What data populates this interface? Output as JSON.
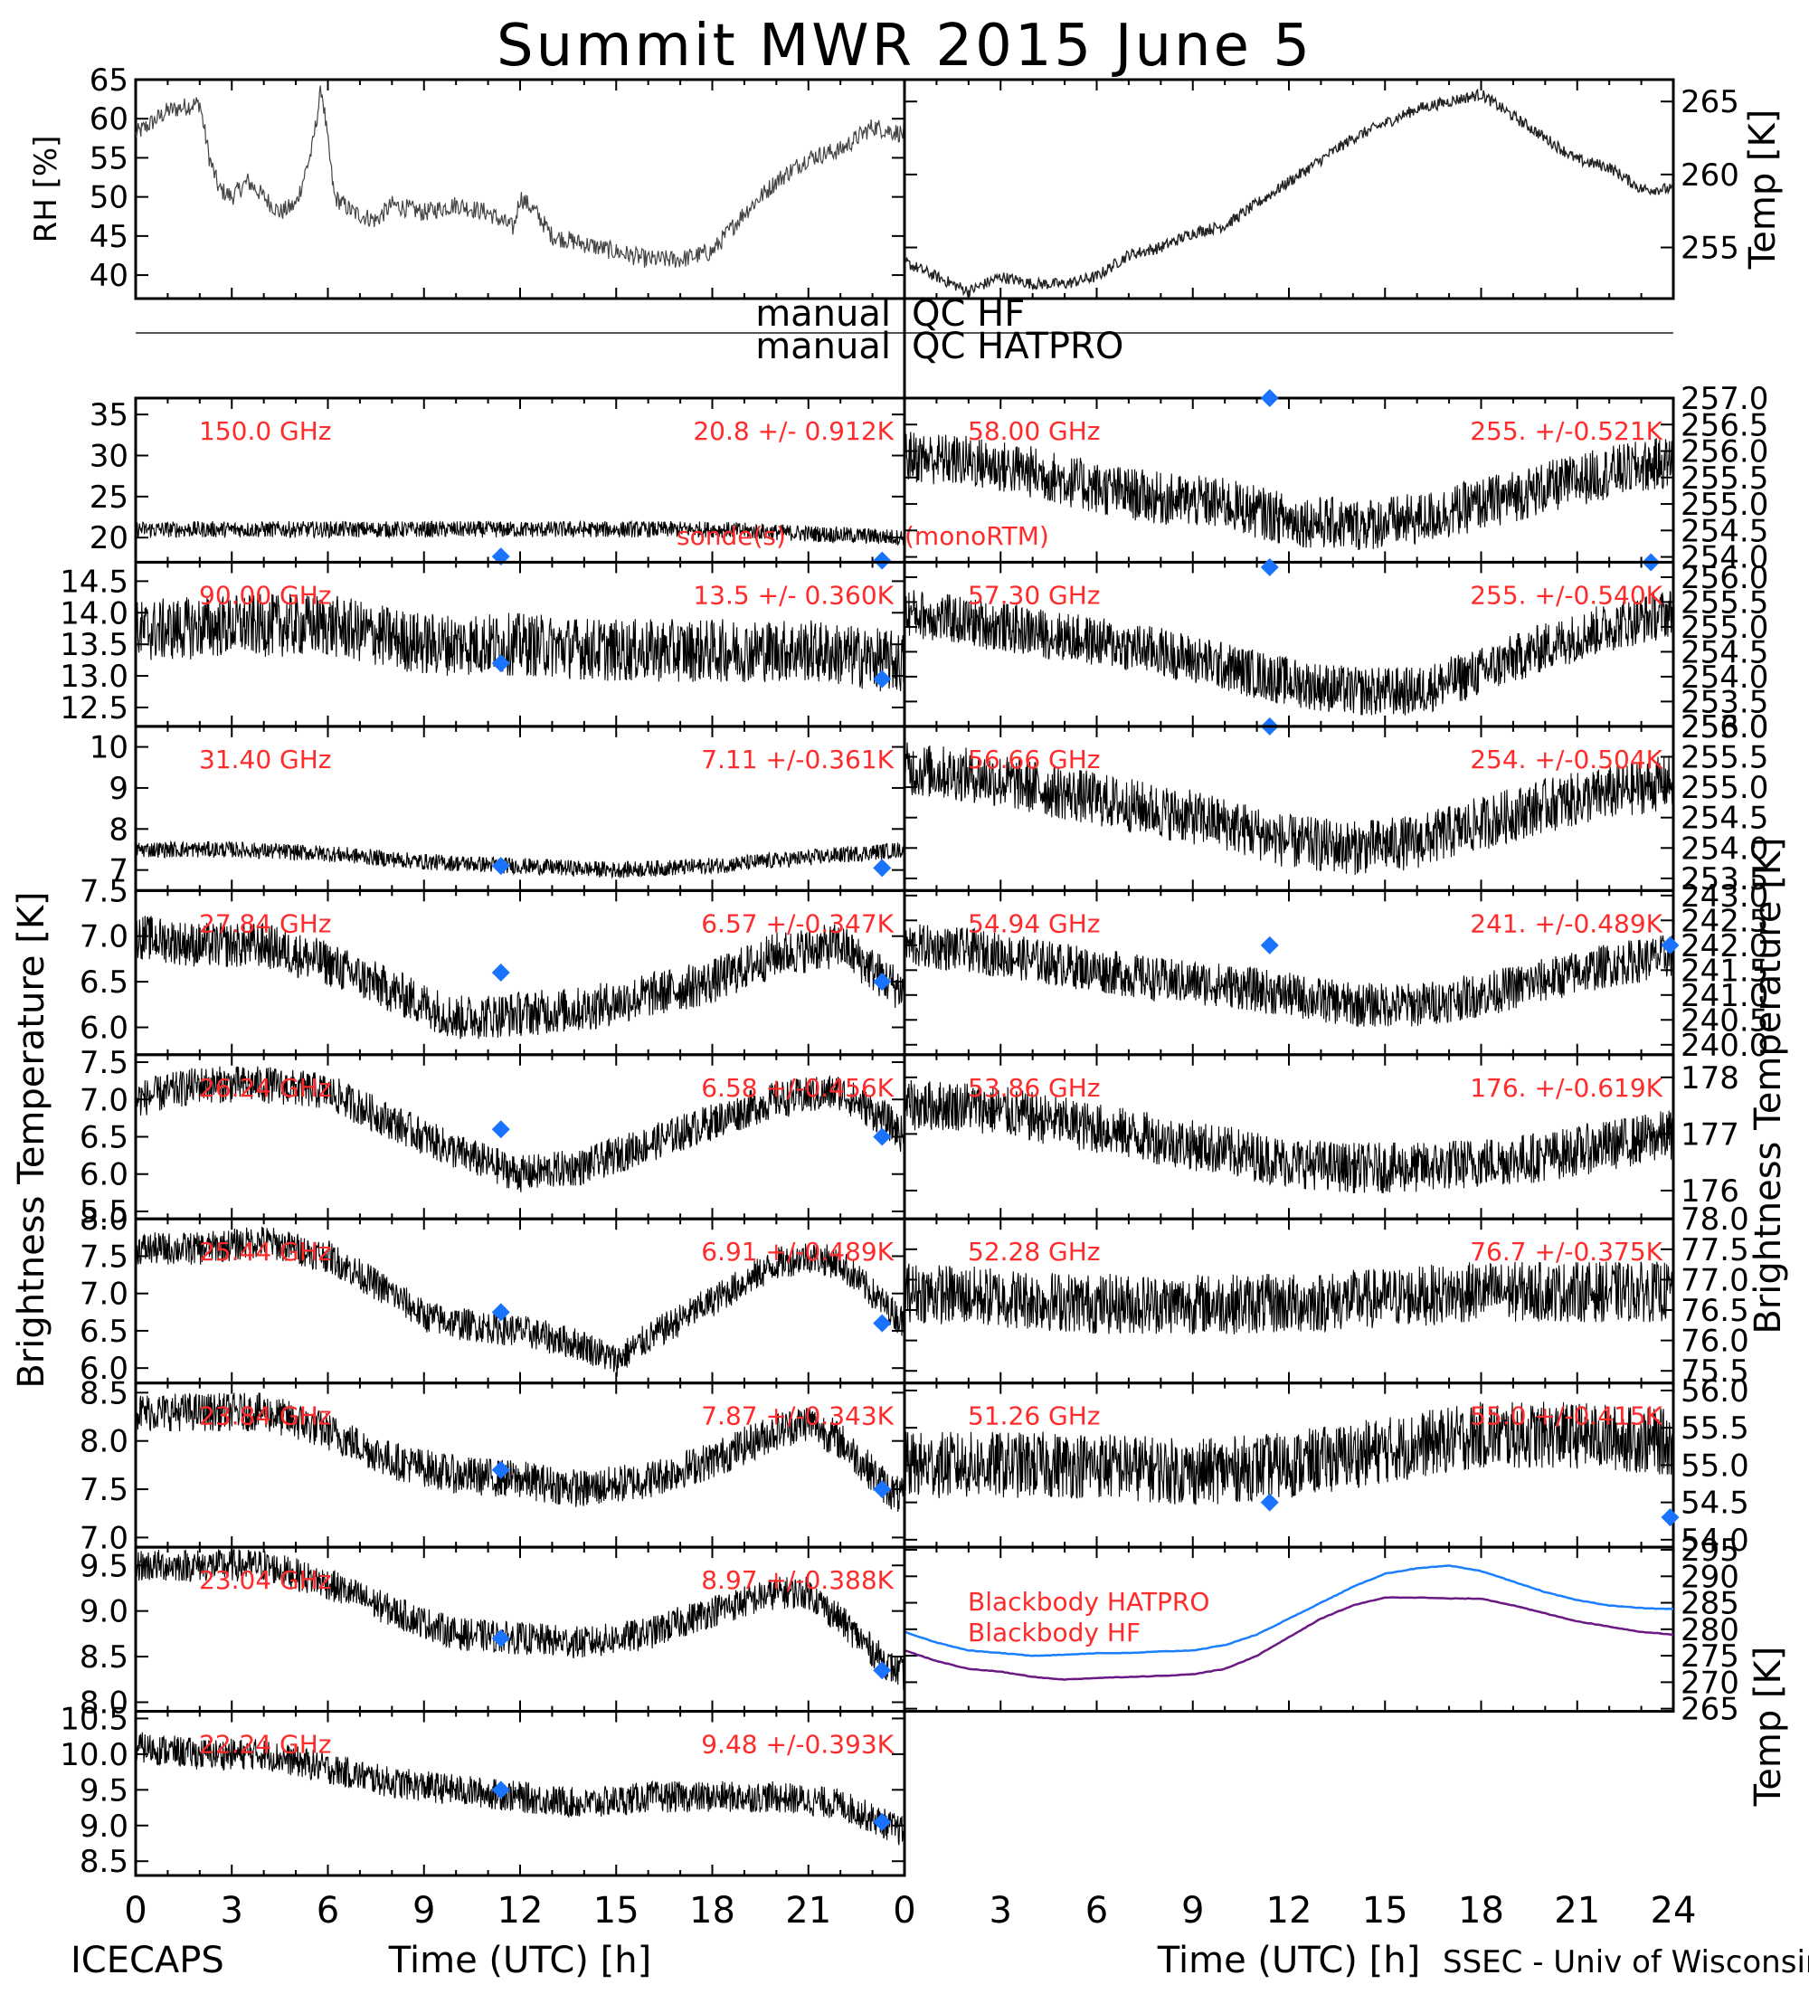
{
  "chart_data": {
    "type": "line",
    "title": "Summit MWR 2015 June  5",
    "footer_left": "ICECAPS",
    "footer_right": "SSEC - Univ of Wisconsin",
    "xlabel": "Time (UTC) [h]",
    "xlim": [
      0,
      24
    ],
    "xticks": [
      "0",
      "3",
      "6",
      "9",
      "12",
      "15",
      "18",
      "21",
      "0",
      "3",
      "6",
      "9",
      "12",
      "15",
      "18",
      "21",
      "24"
    ],
    "left_axis_label": "Brightness Temperature [K]",
    "right_axis_label": "Brightness Temperature [K]",
    "qc_lines": [
      "manual",
      "QC HF",
      "manual",
      "QC HATPRO"
    ],
    "met": {
      "rh": {
        "ylabel": "RH [%]",
        "ylim": [
          37,
          65
        ],
        "yticks": [
          "40",
          "45",
          "50",
          "55",
          "60",
          "65"
        ],
        "x": [
          0,
          1,
          2,
          2.3,
          2.6,
          3,
          3.5,
          4,
          4.5,
          5,
          5.5,
          5.8,
          6.2,
          6.8,
          7.5,
          8,
          9,
          10,
          11,
          11.8,
          12,
          12.5,
          13,
          14,
          15,
          16,
          17,
          18,
          19,
          20,
          21,
          22,
          23,
          24
        ],
        "values": [
          58,
          61,
          62,
          55,
          51,
          50,
          52,
          50,
          48,
          49,
          56,
          64,
          50,
          48,
          47,
          49,
          48,
          49,
          48,
          46,
          50,
          48,
          45,
          44,
          43,
          42,
          42,
          43,
          48,
          52,
          55,
          56,
          59,
          58
        ]
      },
      "temp": {
        "ylabel": "Temp [K]",
        "ylim": [
          251.5,
          266.5
        ],
        "yticks": [
          "255",
          "260",
          "265"
        ],
        "x": [
          0,
          1,
          2,
          3,
          4,
          5,
          6,
          7,
          8,
          9,
          10,
          11,
          12,
          13,
          14,
          15,
          16,
          17,
          18,
          19,
          20,
          21,
          22,
          23,
          24
        ],
        "values": [
          254,
          253,
          252,
          253,
          252.5,
          252.5,
          253,
          254.5,
          255,
          256,
          256.5,
          258,
          259.5,
          261,
          262.5,
          263.5,
          264.5,
          265,
          265.5,
          264,
          262.5,
          261,
          260.5,
          259,
          259
        ]
      }
    },
    "panels": [
      {
        "col": "left",
        "freq": "150.0 GHz",
        "stat": "20.8 +/- 0.912K",
        "ylim": [
          17,
          37
        ],
        "yticks": [
          "20",
          "25",
          "30",
          "35"
        ],
        "x": [
          0,
          3,
          6,
          9,
          12,
          15,
          18,
          21,
          24
        ],
        "values": [
          21,
          21,
          21,
          21,
          21,
          21,
          21,
          20.5,
          20
        ],
        "noise": 1.0,
        "markers": [
          [
            11.4,
            17.7
          ],
          [
            23.3,
            17.2
          ]
        ],
        "extra_labels": [
          {
            "text": "sonde(s)",
            "color": "#3070ff",
            "x": 20.3,
            "y_frac": 0.85
          },
          {
            "text": "(monoRTM)",
            "color": "#3070ff",
            "x": 24.0,
            "y_frac": 0.85
          }
        ]
      },
      {
        "col": "left",
        "freq": "90.00 GHz",
        "stat": "13.5 +/- 0.360K",
        "ylim": [
          12.2,
          14.8
        ],
        "yticks": [
          "12.5",
          "13.0",
          "13.5",
          "14.0",
          "14.5"
        ],
        "x": [
          0,
          3,
          6,
          9,
          12,
          15,
          18,
          21,
          24
        ],
        "values": [
          13.7,
          13.8,
          13.8,
          13.5,
          13.5,
          13.4,
          13.4,
          13.4,
          13.2
        ],
        "noise": 0.5,
        "markers": [
          [
            11.4,
            13.2
          ],
          [
            23.3,
            12.95
          ]
        ]
      },
      {
        "col": "left",
        "freq": "31.40 GHz",
        "stat": "7.11 +/-0.361K",
        "ylim": [
          6.5,
          10.5
        ],
        "yticks": [
          "7",
          "8",
          "9",
          "10"
        ],
        "x": [
          0,
          3,
          6,
          9,
          12,
          15,
          18,
          21,
          24
        ],
        "values": [
          7.5,
          7.5,
          7.4,
          7.2,
          7.1,
          7.0,
          7.1,
          7.3,
          7.5
        ],
        "noise": 0.2,
        "markers": [
          [
            11.4,
            7.1
          ],
          [
            23.3,
            7.05
          ]
        ]
      },
      {
        "col": "left",
        "freq": "27.84 GHz",
        "stat": "6.57 +/-0.347K",
        "ylim": [
          5.7,
          7.5
        ],
        "yticks": [
          "6.0",
          "6.5",
          "7.0",
          "7.5"
        ],
        "x": [
          0,
          2,
          4,
          6,
          8,
          10,
          12,
          14,
          16,
          18,
          20,
          22,
          23.5,
          24
        ],
        "values": [
          7.0,
          6.9,
          6.9,
          6.7,
          6.4,
          6.1,
          6.15,
          6.2,
          6.35,
          6.5,
          6.8,
          6.9,
          6.5,
          6.4
        ],
        "noise": 0.25,
        "markers": [
          [
            11.4,
            6.6
          ],
          [
            23.3,
            6.5
          ]
        ]
      },
      {
        "col": "left",
        "freq": "26.24 GHz",
        "stat": "6.58 +/-0.456K",
        "ylim": [
          5.4,
          7.6
        ],
        "yticks": [
          "5.5",
          "6.0",
          "6.5",
          "7.0",
          "7.5"
        ],
        "x": [
          0,
          2,
          4,
          6,
          8,
          10,
          12,
          14,
          16,
          18,
          20,
          22,
          23.5,
          24
        ],
        "values": [
          7.0,
          7.2,
          7.2,
          7.1,
          6.7,
          6.3,
          6.0,
          6.1,
          6.4,
          6.7,
          7.0,
          7.1,
          6.7,
          6.5
        ],
        "noise": 0.25,
        "markers": [
          [
            11.4,
            6.6
          ],
          [
            23.3,
            6.5
          ]
        ]
      },
      {
        "col": "left",
        "freq": "25.44 GHz",
        "stat": "6.91 +/-0.489K",
        "ylim": [
          5.8,
          8.0
        ],
        "yticks": [
          "6.0",
          "6.5",
          "7.0",
          "7.5",
          "8.0"
        ],
        "x": [
          0,
          2,
          4,
          6,
          8,
          9,
          10,
          12,
          14,
          15,
          16,
          18,
          20,
          21,
          22,
          23.5,
          24
        ],
        "values": [
          7.6,
          7.6,
          7.7,
          7.5,
          7.0,
          6.7,
          6.6,
          6.5,
          6.3,
          6.1,
          6.4,
          6.9,
          7.4,
          7.5,
          7.4,
          6.8,
          6.6
        ],
        "noise": 0.22,
        "markers": [
          [
            11.4,
            6.75
          ],
          [
            23.3,
            6.6
          ]
        ]
      },
      {
        "col": "left",
        "freq": "23.84 GHz",
        "stat": "7.87 +/-0.343K",
        "ylim": [
          6.9,
          8.6
        ],
        "yticks": [
          "7.0",
          "7.5",
          "8.0",
          "8.5"
        ],
        "x": [
          0,
          2,
          4,
          6,
          8,
          10,
          12,
          14,
          16,
          18,
          20,
          21,
          22,
          23.5,
          24
        ],
        "values": [
          8.3,
          8.3,
          8.3,
          8.1,
          7.8,
          7.65,
          7.6,
          7.5,
          7.6,
          7.8,
          8.1,
          8.2,
          8.0,
          7.5,
          7.4
        ],
        "noise": 0.2,
        "markers": [
          [
            11.4,
            7.7
          ],
          [
            23.3,
            7.5
          ]
        ]
      },
      {
        "col": "left",
        "freq": "23.04 GHz",
        "stat": "8.97 +/-0.388K",
        "ylim": [
          7.9,
          9.7
        ],
        "yticks": [
          "8.0",
          "8.5",
          "9.0",
          "9.5"
        ],
        "x": [
          0,
          2,
          4,
          6,
          8,
          10,
          12,
          14,
          16,
          18,
          20,
          21,
          22,
          23.5,
          24
        ],
        "values": [
          9.5,
          9.5,
          9.5,
          9.3,
          9.0,
          8.75,
          8.7,
          8.65,
          8.75,
          9.0,
          9.2,
          9.2,
          8.9,
          8.4,
          8.3
        ],
        "noise": 0.18,
        "markers": [
          [
            11.4,
            8.7
          ],
          [
            23.3,
            8.35
          ]
        ]
      },
      {
        "col": "left",
        "freq": "22.24 GHz",
        "stat": "9.48 +/-0.393K",
        "ylim": [
          8.3,
          10.6
        ],
        "yticks": [
          "8.5",
          "9.0",
          "9.5",
          "10.0",
          "10.5"
        ],
        "x": [
          0,
          2,
          4,
          6,
          8,
          10,
          12,
          14,
          16,
          18,
          20,
          22,
          23.5,
          24
        ],
        "values": [
          10.1,
          10.0,
          10.0,
          9.8,
          9.6,
          9.5,
          9.4,
          9.3,
          9.4,
          9.4,
          9.4,
          9.3,
          9.0,
          8.9
        ],
        "noise": 0.22,
        "markers": [
          [
            11.4,
            9.5
          ],
          [
            23.3,
            9.05
          ]
        ]
      },
      {
        "col": "right",
        "freq": "58.00 GHz",
        "stat": "255. +/-0.521K",
        "ylim": [
          253.9,
          257.0
        ],
        "yticks": [
          "254.0",
          "254.5",
          "255.0",
          "255.5",
          "256.0",
          "256.5",
          "257.0"
        ],
        "x": [
          0,
          2,
          4,
          6,
          8,
          10,
          12,
          14,
          16,
          18,
          20,
          22,
          24
        ],
        "values": [
          255.9,
          255.8,
          255.6,
          255.3,
          255.1,
          255.0,
          254.7,
          254.6,
          254.7,
          255.0,
          255.3,
          255.6,
          255.8
        ],
        "noise": 0.5,
        "markers": [
          [
            11.4,
            257.0
          ],
          [
            23.3,
            253.9
          ]
        ]
      },
      {
        "col": "right",
        "freq": "57.30 GHz",
        "stat": "255. +/-0.540K",
        "ylim": [
          253.0,
          256.3
        ],
        "yticks": [
          "253.0",
          "253.5",
          "254.0",
          "254.5",
          "255.0",
          "255.5",
          "256.0",
          "256.5"
        ],
        "x": [
          0,
          2,
          4,
          6,
          8,
          10,
          12,
          14,
          16,
          18,
          20,
          22,
          24
        ],
        "values": [
          255.3,
          255.1,
          254.9,
          254.7,
          254.5,
          254.2,
          253.9,
          253.7,
          253.7,
          254.1,
          254.6,
          255.0,
          255.3
        ],
        "noise": 0.5,
        "markers": [
          [
            11.4,
            256.2
          ],
          [
            11.4,
            253.0
          ]
        ]
      },
      {
        "col": "right",
        "freq": "56.66 GHz",
        "stat": "254. +/-0.504K",
        "ylim": [
          253.3,
          256.0
        ],
        "yticks": [
          "253.5",
          "254.0",
          "254.5",
          "255.0",
          "255.5",
          "256.0"
        ],
        "x": [
          0,
          2,
          4,
          6,
          8,
          10,
          12,
          14,
          16,
          18,
          20,
          22,
          24
        ],
        "values": [
          255.3,
          255.2,
          255.0,
          254.8,
          254.6,
          254.4,
          254.1,
          254.0,
          254.1,
          254.4,
          254.7,
          254.9,
          255.1
        ],
        "noise": 0.45,
        "markers": []
      },
      {
        "col": "right",
        "freq": "54.94 GHz",
        "stat": "241. +/-0.489K",
        "ylim": [
          239.8,
          243.1
        ],
        "yticks": [
          "240.0",
          "240.5",
          "241.0",
          "241.5",
          "242.0",
          "242.5",
          "243.0"
        ],
        "x": [
          0,
          2,
          4,
          6,
          8,
          10,
          12,
          14,
          16,
          18,
          20,
          22,
          24
        ],
        "values": [
          242.0,
          241.9,
          241.7,
          241.5,
          241.3,
          241.2,
          241.0,
          240.8,
          240.8,
          241.0,
          241.3,
          241.6,
          241.8
        ],
        "noise": 0.45,
        "markers": [
          [
            11.4,
            242.0
          ],
          [
            23.9,
            242.0
          ]
        ]
      },
      {
        "col": "right",
        "freq": "53.86 GHz",
        "stat": "176. +/-0.619K",
        "ylim": [
          175.5,
          178.4
        ],
        "yticks": [
          "176",
          "177",
          "178"
        ],
        "x": [
          0,
          2,
          4,
          6,
          8,
          10,
          12,
          14,
          16,
          18,
          20,
          22,
          24
        ],
        "values": [
          177.5,
          177.5,
          177.3,
          177.1,
          176.9,
          176.7,
          176.5,
          176.4,
          176.4,
          176.5,
          176.6,
          176.8,
          177.0
        ],
        "noise": 0.45,
        "markers": []
      },
      {
        "col": "right",
        "freq": "52.28 GHz",
        "stat": "76.7 +/-0.375K",
        "ylim": [
          75.3,
          78.0
        ],
        "yticks": [
          "75.5",
          "76.0",
          "76.5",
          "77.0",
          "77.5",
          "78.0"
        ],
        "x": [
          0,
          3,
          6,
          9,
          12,
          15,
          18,
          21,
          24
        ],
        "values": [
          76.8,
          76.7,
          76.6,
          76.6,
          76.6,
          76.7,
          76.8,
          76.8,
          76.8
        ],
        "noise": 0.5,
        "markers": []
      },
      {
        "col": "right",
        "freq": "51.26 GHz",
        "stat": "55.0 +/-0.415K",
        "ylim": [
          53.9,
          56.1
        ],
        "yticks": [
          "54.0",
          "54.5",
          "55.0",
          "55.5",
          "56.0"
        ],
        "x": [
          0,
          3,
          6,
          9,
          12,
          15,
          18,
          21,
          24
        ],
        "values": [
          55.0,
          55.0,
          55.0,
          54.9,
          55.0,
          55.2,
          55.4,
          55.4,
          55.3
        ],
        "noise": 0.45,
        "markers": [
          [
            11.4,
            54.5
          ],
          [
            23.9,
            54.3
          ]
        ]
      },
      {
        "col": "right",
        "freq": "",
        "stat": "",
        "ylim": [
          264.5,
          295.5
        ],
        "yticks": [
          "265",
          "270",
          "275",
          "280",
          "285",
          "290",
          "295"
        ],
        "ylabel": "Temp [K]",
        "legend": [
          {
            "name": "Blackbody HATPRO",
            "color": "#1a7fff"
          },
          {
            "name": "Blackbody HF",
            "color": "#6a1a82"
          }
        ],
        "series": [
          {
            "name": "Blackbody HATPRO",
            "color": "#1a7fff",
            "x": [
              0,
              1,
              2,
              3,
              4,
              5,
              6,
              7,
              8,
              9,
              10,
              11,
              12,
              13,
              14,
              15,
              16,
              17,
              18,
              19,
              20,
              21,
              22,
              23,
              24
            ],
            "values": [
              279.5,
              277.5,
              276,
              275.5,
              275,
              275.2,
              275.5,
              275.5,
              275.8,
              276,
              277,
              279,
              282,
              285,
              288,
              290.5,
              291.5,
              292,
              291,
              289,
              287,
              285.5,
              284.5,
              284,
              283.8
            ]
          },
          {
            "name": "Blackbody HF",
            "color": "#6a1a82",
            "x": [
              0,
              1,
              2,
              3,
              4,
              5,
              6,
              7,
              8,
              9,
              10,
              11,
              12,
              13,
              14,
              15,
              16,
              17,
              18,
              19,
              20,
              21,
              22,
              23,
              24
            ],
            "values": [
              276,
              274,
              272.5,
              272,
              271,
              270.5,
              270.8,
              271,
              271.2,
              271.5,
              272.5,
              275,
              278.5,
              282,
              284.5,
              286,
              286,
              285.8,
              285.8,
              284.5,
              283,
              281.5,
              280.5,
              279.5,
              279
            ]
          }
        ]
      }
    ]
  }
}
